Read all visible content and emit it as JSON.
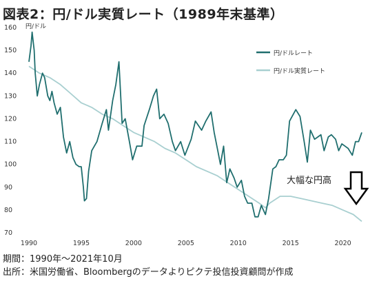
{
  "title": "図表2：円/ドル実質レート（1989年末基準）",
  "notes": {
    "period": "期間：1990年～2021年10月",
    "source": "出所：米国労働省、Bloombergのデータよりピクテ投信投資顧問が作成"
  },
  "chart_data": {
    "type": "line",
    "ylabel": "円/ドル",
    "ylim": [
      70,
      160
    ],
    "xlim": [
      1990,
      2022
    ],
    "yticks": [
      70,
      80,
      90,
      100,
      110,
      120,
      130,
      140,
      150,
      160
    ],
    "xticks": [
      1990,
      1995,
      2000,
      2005,
      2010,
      2015,
      2020
    ],
    "grid": false,
    "legend_position": "top-right",
    "annotation": "大幅な円高",
    "series": [
      {
        "name": "円/ドルレート",
        "color": "#1f6e6e",
        "points": [
          [
            1990.0,
            145
          ],
          [
            1990.2,
            152
          ],
          [
            1990.3,
            158
          ],
          [
            1990.5,
            150
          ],
          [
            1990.6,
            140
          ],
          [
            1990.8,
            130
          ],
          [
            1991.0,
            135
          ],
          [
            1991.3,
            140
          ],
          [
            1991.5,
            138
          ],
          [
            1991.8,
            130
          ],
          [
            1992.0,
            128
          ],
          [
            1992.2,
            132
          ],
          [
            1992.4,
            127
          ],
          [
            1992.7,
            122
          ],
          [
            1993.0,
            125
          ],
          [
            1993.3,
            112
          ],
          [
            1993.6,
            105
          ],
          [
            1993.9,
            110
          ],
          [
            1994.2,
            103
          ],
          [
            1994.5,
            100
          ],
          [
            1994.8,
            99
          ],
          [
            1995.0,
            99
          ],
          [
            1995.2,
            90
          ],
          [
            1995.3,
            84
          ],
          [
            1995.5,
            85
          ],
          [
            1995.7,
            97
          ],
          [
            1996.0,
            106
          ],
          [
            1996.5,
            110
          ],
          [
            1997.0,
            118
          ],
          [
            1997.4,
            124
          ],
          [
            1997.6,
            115
          ],
          [
            1998.0,
            128
          ],
          [
            1998.3,
            135
          ],
          [
            1998.6,
            145
          ],
          [
            1998.9,
            118
          ],
          [
            1999.2,
            120
          ],
          [
            1999.6,
            110
          ],
          [
            1999.9,
            102
          ],
          [
            2000.3,
            108
          ],
          [
            2000.8,
            108
          ],
          [
            2001.0,
            117
          ],
          [
            2001.5,
            124
          ],
          [
            2001.9,
            130
          ],
          [
            2002.2,
            133
          ],
          [
            2002.5,
            120
          ],
          [
            2002.9,
            122
          ],
          [
            2003.3,
            118
          ],
          [
            2003.7,
            110
          ],
          [
            2004.0,
            106
          ],
          [
            2004.5,
            110
          ],
          [
            2004.9,
            104
          ],
          [
            2005.5,
            111
          ],
          [
            2005.9,
            119
          ],
          [
            2006.5,
            115
          ],
          [
            2006.9,
            119
          ],
          [
            2007.4,
            123
          ],
          [
            2007.7,
            114
          ],
          [
            2008.0,
            107
          ],
          [
            2008.3,
            100
          ],
          [
            2008.6,
            108
          ],
          [
            2008.9,
            92
          ],
          [
            2009.2,
            98
          ],
          [
            2009.6,
            94
          ],
          [
            2009.9,
            90
          ],
          [
            2010.3,
            93
          ],
          [
            2010.6,
            86
          ],
          [
            2010.9,
            83
          ],
          [
            2011.3,
            83
          ],
          [
            2011.6,
            77
          ],
          [
            2011.9,
            77
          ],
          [
            2012.2,
            82
          ],
          [
            2012.6,
            78
          ],
          [
            2012.9,
            85
          ],
          [
            2013.3,
            98
          ],
          [
            2013.6,
            99
          ],
          [
            2013.9,
            102
          ],
          [
            2014.3,
            102
          ],
          [
            2014.6,
            104
          ],
          [
            2014.9,
            119
          ],
          [
            2015.5,
            124
          ],
          [
            2015.9,
            121
          ],
          [
            2016.3,
            110
          ],
          [
            2016.6,
            101
          ],
          [
            2016.9,
            115
          ],
          [
            2017.3,
            111
          ],
          [
            2017.6,
            112
          ],
          [
            2017.9,
            113
          ],
          [
            2018.2,
            106
          ],
          [
            2018.6,
            112
          ],
          [
            2018.9,
            113
          ],
          [
            2019.3,
            111
          ],
          [
            2019.6,
            106
          ],
          [
            2019.9,
            109
          ],
          [
            2020.2,
            108
          ],
          [
            2020.5,
            107
          ],
          [
            2020.9,
            104
          ],
          [
            2021.2,
            110
          ],
          [
            2021.5,
            110
          ],
          [
            2021.8,
            114
          ]
        ]
      },
      {
        "name": "円/ドル実質レート",
        "color": "#a8cfd0",
        "points": [
          [
            1990.0,
            143
          ],
          [
            1991.0,
            140
          ],
          [
            1992.0,
            138
          ],
          [
            1993.0,
            135
          ],
          [
            1994.0,
            131
          ],
          [
            1995.0,
            127
          ],
          [
            1996.0,
            125
          ],
          [
            1997.0,
            122
          ],
          [
            1998.0,
            120
          ],
          [
            1999.0,
            117
          ],
          [
            2000.0,
            114
          ],
          [
            2001.0,
            112
          ],
          [
            2002.0,
            110
          ],
          [
            2003.0,
            107
          ],
          [
            2004.0,
            105
          ],
          [
            2005.0,
            102
          ],
          [
            2006.0,
            99
          ],
          [
            2007.0,
            97
          ],
          [
            2008.0,
            95
          ],
          [
            2009.0,
            92
          ],
          [
            2010.0,
            89
          ],
          [
            2011.0,
            86
          ],
          [
            2012.0,
            83
          ],
          [
            2012.6,
            81
          ],
          [
            2013.0,
            83
          ],
          [
            2014.0,
            86
          ],
          [
            2015.0,
            86
          ],
          [
            2016.0,
            85
          ],
          [
            2017.0,
            84
          ],
          [
            2018.0,
            83
          ],
          [
            2019.0,
            82
          ],
          [
            2020.0,
            80
          ],
          [
            2021.0,
            78
          ],
          [
            2021.8,
            75
          ]
        ]
      }
    ]
  }
}
